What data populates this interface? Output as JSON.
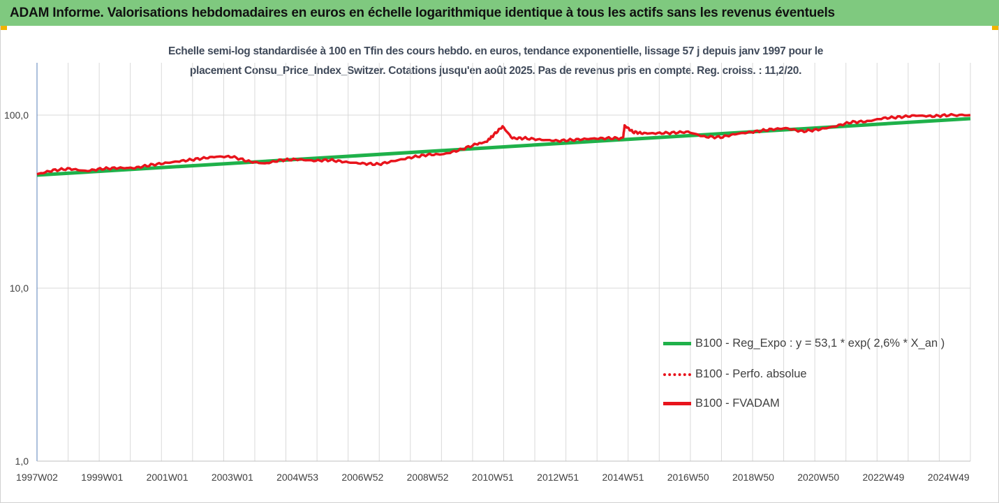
{
  "header": {
    "title": "ADAM Informe. Valorisations hebdomadaires en euros en échelle logarithmique identique à tous les actifs sans les revenus éventuels"
  },
  "colors": {
    "title_bar": "#7fc97f",
    "corner_marks": "#f0b400",
    "trend": "#1fb14a",
    "perf": "#e8141c",
    "fvadam": "#e8141c",
    "axis": "#5a7fb8",
    "grid": "#d9d9d9"
  },
  "chart_data": {
    "type": "line",
    "title_line1": "Echelle semi-log standardisée à 100 en Tfin des cours hebdo. en euros, tendance exponentielle, lissage 57 j depuis janv 1997 pour le",
    "title_line2": "placement Consu_Price_Index_Switzer. Cotations jusqu'en août 2025.  Pas de revenus pris en compte.  Reg. croiss. : 11,2/20.",
    "y_scale": "log",
    "ylim": [
      1,
      200
    ],
    "y_ticks": [
      {
        "value": 1,
        "label": "1,0"
      },
      {
        "value": 10,
        "label": "10,0"
      },
      {
        "value": 100,
        "label": "100,0"
      }
    ],
    "xlim": [
      1997.0,
      2025.67
    ],
    "x_ticks": [
      {
        "x": 1997.0,
        "label": "1997W02"
      },
      {
        "x": 1999.0,
        "label": "1999W01"
      },
      {
        "x": 2001.0,
        "label": "2001W01"
      },
      {
        "x": 2003.0,
        "label": "2003W01"
      },
      {
        "x": 2005.0,
        "label": "2004W53"
      },
      {
        "x": 2007.0,
        "label": "2006W52"
      },
      {
        "x": 2009.0,
        "label": "2008W52"
      },
      {
        "x": 2011.0,
        "label": "2010W51"
      },
      {
        "x": 2013.0,
        "label": "2012W51"
      },
      {
        "x": 2015.0,
        "label": "2014W51"
      },
      {
        "x": 2017.0,
        "label": "2016W50"
      },
      {
        "x": 2019.0,
        "label": "2018W50"
      },
      {
        "x": 2021.0,
        "label": "2020W50"
      },
      {
        "x": 2023.0,
        "label": "2022W49"
      },
      {
        "x": 2025.0,
        "label": "2024W49"
      }
    ],
    "series": [
      {
        "name": "B100 - Reg_Expo : y = 53,1 * exp( 2,6% *  X_an )",
        "style": "solid-thick",
        "x": [
          1997.0,
          2025.67
        ],
        "y": [
          45.0,
          95.5
        ]
      },
      {
        "name": "B100 - Perfo. absolue",
        "style": "dotted",
        "x": [],
        "y": []
      },
      {
        "name": "B100 - FVADAM",
        "style": "solid-thick",
        "x": [
          1997.0,
          1997.5,
          1998.0,
          1998.5,
          1999.0,
          1999.5,
          2000.0,
          2000.5,
          2001.0,
          2001.5,
          2002.0,
          2002.5,
          2003.0,
          2003.5,
          2004.0,
          2004.5,
          2005.0,
          2005.5,
          2006.0,
          2006.5,
          2007.0,
          2007.5,
          2008.0,
          2008.5,
          2009.0,
          2009.5,
          2010.0,
          2010.5,
          2010.8,
          2011.0,
          2011.3,
          2011.6,
          2012.0,
          2012.5,
          2013.0,
          2013.5,
          2014.0,
          2014.5,
          2015.0,
          2015.05,
          2015.3,
          2015.6,
          2016.0,
          2016.5,
          2017.0,
          2017.5,
          2018.0,
          2018.5,
          2019.0,
          2019.5,
          2020.0,
          2020.5,
          2021.0,
          2021.5,
          2022.0,
          2022.5,
          2023.0,
          2023.5,
          2024.0,
          2024.5,
          2025.0,
          2025.67
        ],
        "y": [
          45.5,
          48.0,
          49.0,
          47.5,
          49.0,
          49.5,
          49.5,
          51.5,
          53.0,
          54.5,
          56.0,
          57.5,
          57.5,
          54.0,
          52.5,
          55.0,
          55.5,
          54.5,
          55.0,
          53.5,
          52.5,
          52.0,
          54.5,
          57.0,
          59.0,
          59.5,
          63.0,
          68.0,
          70.0,
          76.0,
          86.0,
          73.5,
          73.5,
          72.0,
          71.0,
          72.0,
          73.0,
          73.5,
          73.5,
          87.0,
          80.0,
          78.5,
          78.5,
          79.0,
          80.0,
          75.0,
          74.5,
          78.0,
          80.0,
          82.5,
          84.0,
          80.5,
          82.5,
          86.0,
          91.0,
          92.0,
          96.0,
          97.5,
          99.5,
          98.5,
          100.0,
          100.0
        ]
      }
    ],
    "grid": {
      "x": true,
      "y": true
    },
    "legend_position": "bottom-right"
  },
  "legend": {
    "items": [
      {
        "label": "B100 - Reg_Expo : y = 53,1 * exp( 2,6% *  X_an )"
      },
      {
        "label": "B100 - Perfo. absolue"
      },
      {
        "label": "B100 - FVADAM"
      }
    ]
  }
}
